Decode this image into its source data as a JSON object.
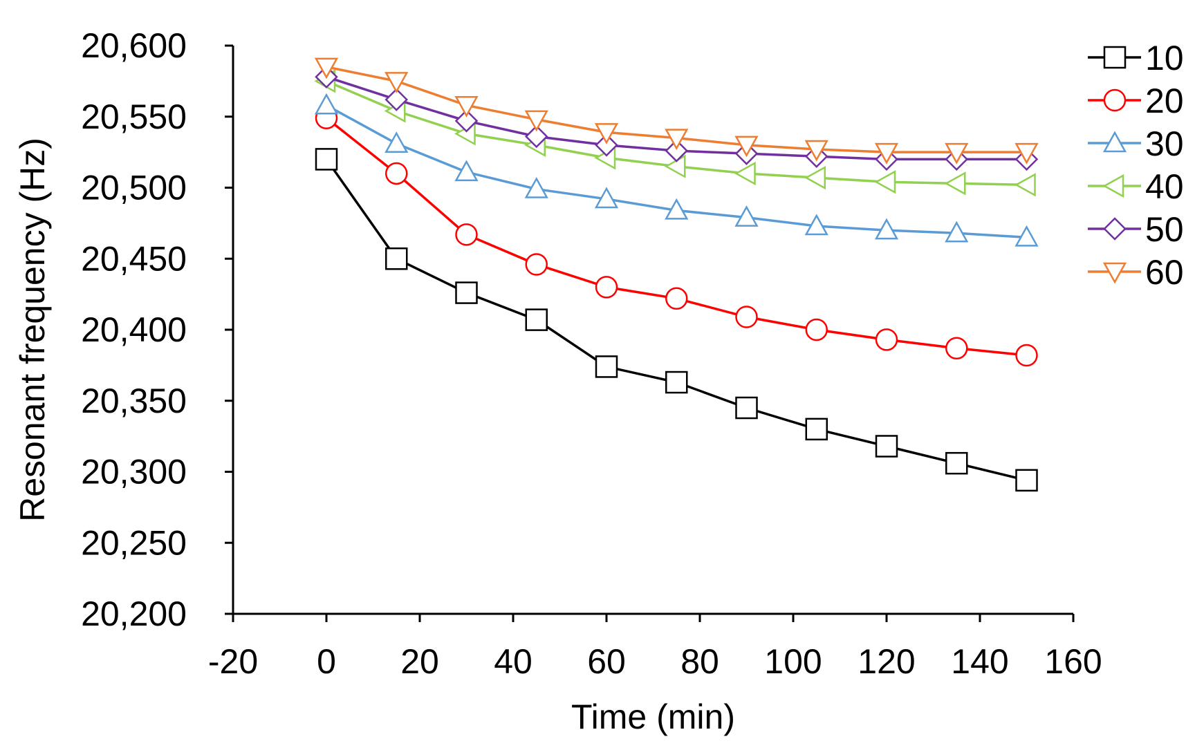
{
  "chart_data": {
    "type": "line",
    "xlabel": "Time (min)",
    "ylabel": "Resonant frequency (Hz)",
    "xlim": [
      -20,
      160
    ],
    "ylim": [
      20200,
      20600
    ],
    "x_ticks": [
      -20,
      0,
      20,
      40,
      60,
      80,
      100,
      120,
      140,
      160
    ],
    "x_tick_labels": [
      "-20",
      "0",
      "20",
      "40",
      "60",
      "80",
      "100",
      "120",
      "140",
      "160"
    ],
    "y_ticks": [
      20200,
      20250,
      20300,
      20350,
      20400,
      20450,
      20500,
      20550,
      20600
    ],
    "y_tick_labels": [
      "20,200",
      "20,250",
      "20,300",
      "20,350",
      "20,400",
      "20,450",
      "20,500",
      "20,550",
      "20,600"
    ],
    "grid": false,
    "legend_position": "right",
    "x": [
      0,
      15,
      30,
      45,
      60,
      75,
      90,
      105,
      120,
      135,
      150
    ],
    "series": [
      {
        "name": "10",
        "color": "#000000",
        "marker": "square",
        "values": [
          20520,
          20450,
          20426,
          20407,
          20374,
          20363,
          20345,
          20330,
          20318,
          20306,
          20294
        ]
      },
      {
        "name": "20",
        "color": "#ff0000",
        "marker": "circle",
        "values": [
          20549,
          20510,
          20467,
          20446,
          20430,
          20422,
          20409,
          20400,
          20393,
          20387,
          20382
        ]
      },
      {
        "name": "30",
        "color": "#5b9bd5",
        "marker": "triangle-up",
        "values": [
          20558,
          20531,
          20511,
          20499,
          20492,
          20484,
          20479,
          20473,
          20470,
          20468,
          20465
        ]
      },
      {
        "name": "40",
        "color": "#92d050",
        "marker": "triangle-left",
        "values": [
          20575,
          20554,
          20538,
          20530,
          20521,
          20515,
          20510,
          20507,
          20504,
          20503,
          20502
        ]
      },
      {
        "name": "50",
        "color": "#7030a0",
        "marker": "diamond",
        "values": [
          20578,
          20562,
          20547,
          20536,
          20530,
          20526,
          20524,
          20522,
          20520,
          20520,
          20520
        ]
      },
      {
        "name": "60",
        "color": "#ed7d31",
        "marker": "triangle-down",
        "values": [
          20585,
          20575,
          20558,
          20548,
          20539,
          20535,
          20530,
          20527,
          20525,
          20525,
          20525
        ]
      }
    ]
  }
}
